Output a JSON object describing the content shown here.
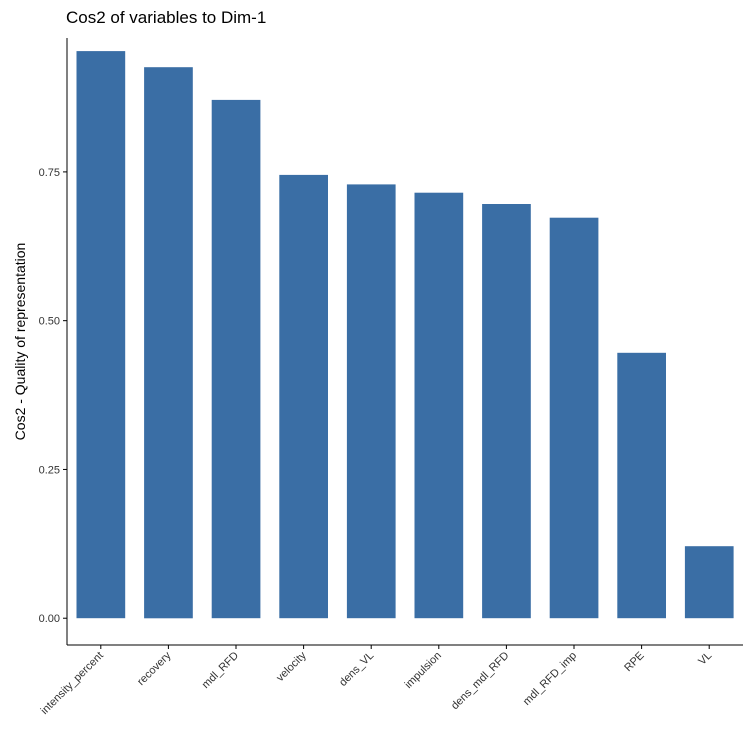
{
  "chart_data": {
    "type": "bar",
    "title": "Cos2 of variables to Dim-1",
    "xlabel": "",
    "ylabel": "Cos2 - Quality of representation",
    "categories": [
      "intensity_percent",
      "recovery",
      "mdl_RFD",
      "velocity",
      "dens_VL",
      "impulsion",
      "dens_mdl_RFD",
      "mdl_RFD_imp",
      "RPE",
      "VL"
    ],
    "values": [
      0.953,
      0.926,
      0.871,
      0.745,
      0.729,
      0.715,
      0.696,
      0.673,
      0.446,
      0.121
    ],
    "ylim": [
      -0.045,
      0.975
    ],
    "yticks": [
      0.0,
      0.25,
      0.5,
      0.75
    ],
    "ytick_labels": [
      "0.00",
      "0.25",
      "0.50",
      "0.75"
    ],
    "bar_color": "#3A6EA5",
    "grid": false,
    "legend": "none"
  }
}
